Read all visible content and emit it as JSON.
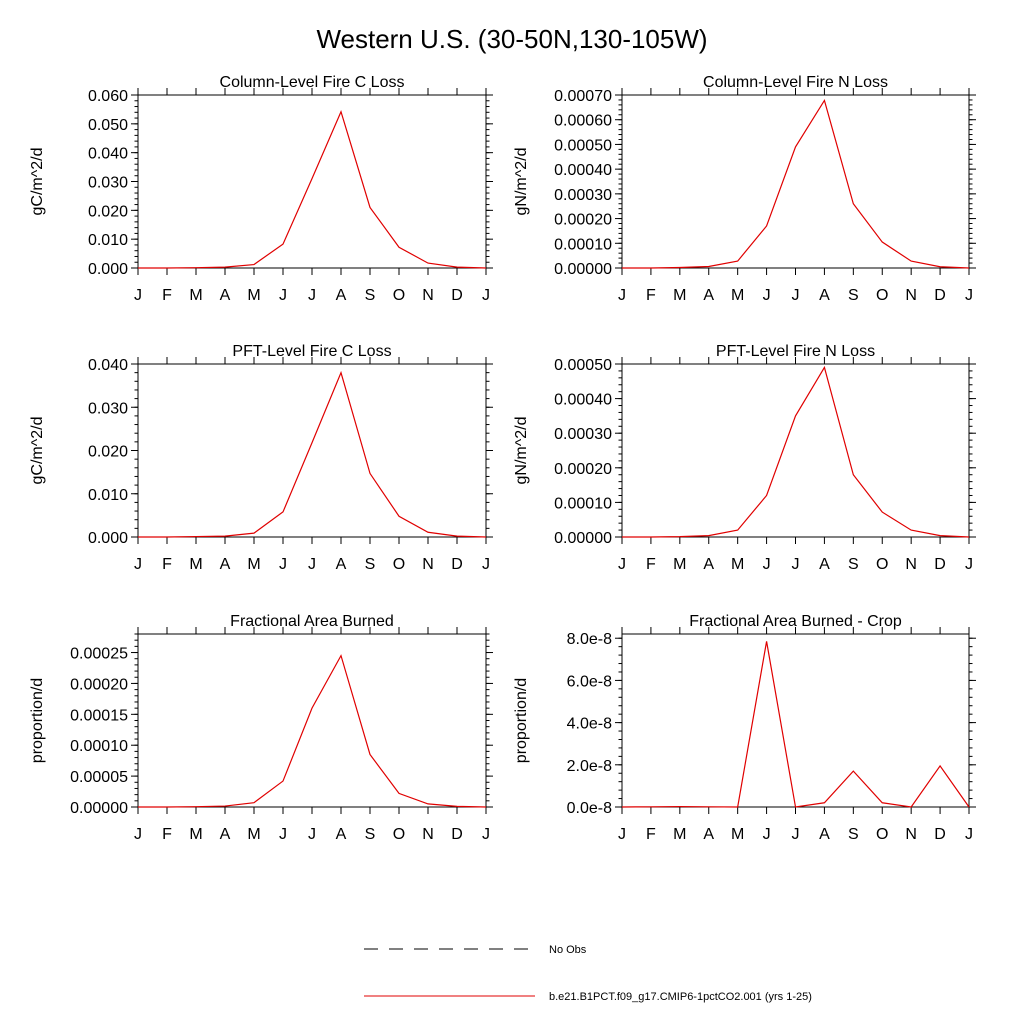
{
  "figure": {
    "title": "Western U.S. (30-50N,130-105W)"
  },
  "chart_data": [
    {
      "type": "line",
      "title": "Column-Level Fire C Loss",
      "xlabel": "",
      "ylabel": "gC/m^2/d",
      "x": [
        "J",
        "F",
        "M",
        "A",
        "M",
        "J",
        "J",
        "A",
        "S",
        "O",
        "N",
        "D",
        "J"
      ],
      "ylim": [
        0,
        0.06
      ],
      "yticks": [
        "0.000",
        "0.010",
        "0.020",
        "0.030",
        "0.040",
        "0.050",
        "0.060"
      ],
      "series": [
        {
          "name": "b.e21.B1PCT.f09_g17.CMIP6-1pctCO2.001 (yrs 1-25)",
          "color": "#e00000",
          "values": [
            0,
            0,
            0.0001,
            0.0003,
            0.0012,
            0.0083,
            0.031,
            0.0542,
            0.021,
            0.0072,
            0.0017,
            0.0003,
            0
          ]
        }
      ]
    },
    {
      "type": "line",
      "title": "Column-Level Fire N Loss",
      "xlabel": "",
      "ylabel": "gN/m^2/d",
      "x": [
        "J",
        "F",
        "M",
        "A",
        "M",
        "J",
        "J",
        "A",
        "S",
        "O",
        "N",
        "D",
        "J"
      ],
      "ylim": [
        0,
        0.0007
      ],
      "yticks": [
        "0.00000",
        "0.00010",
        "0.00020",
        "0.00030",
        "0.00040",
        "0.00050",
        "0.00060",
        "0.00070"
      ],
      "series": [
        {
          "name": "b.e21.B1PCT.f09_g17.CMIP6-1pctCO2.001 (yrs 1-25)",
          "color": "#e00000",
          "values": [
            0,
            0,
            2e-06,
            6e-06,
            2.8e-05,
            0.00017,
            0.00049,
            0.000678,
            0.00026,
            0.000105,
            2.8e-05,
            5e-06,
            0
          ]
        }
      ]
    },
    {
      "type": "line",
      "title": "PFT-Level Fire C Loss",
      "xlabel": "",
      "ylabel": "gC/m^2/d",
      "x": [
        "J",
        "F",
        "M",
        "A",
        "M",
        "J",
        "J",
        "A",
        "S",
        "O",
        "N",
        "D",
        "J"
      ],
      "ylim": [
        0,
        0.04
      ],
      "yticks": [
        "0.000",
        "0.010",
        "0.020",
        "0.030",
        "0.040"
      ],
      "series": [
        {
          "name": "b.e21.B1PCT.f09_g17.CMIP6-1pctCO2.001 (yrs 1-25)",
          "color": "#e00000",
          "values": [
            0,
            0,
            0.0001,
            0.0002,
            0.0009,
            0.0058,
            0.0218,
            0.038,
            0.0147,
            0.0048,
            0.0011,
            0.0002,
            0
          ]
        }
      ]
    },
    {
      "type": "line",
      "title": "PFT-Level Fire N Loss",
      "xlabel": "",
      "ylabel": "gN/m^2/d",
      "x": [
        "J",
        "F",
        "M",
        "A",
        "M",
        "J",
        "J",
        "A",
        "S",
        "O",
        "N",
        "D",
        "J"
      ],
      "ylim": [
        0,
        0.0005
      ],
      "yticks": [
        "0.00000",
        "0.00010",
        "0.00020",
        "0.00030",
        "0.00040",
        "0.00050"
      ],
      "series": [
        {
          "name": "b.e21.B1PCT.f09_g17.CMIP6-1pctCO2.001 (yrs 1-25)",
          "color": "#e00000",
          "values": [
            0,
            0,
            1e-06,
            4e-06,
            2e-05,
            0.00012,
            0.00035,
            0.00049,
            0.00018,
            7.2e-05,
            2e-05,
            4e-06,
            0
          ]
        }
      ]
    },
    {
      "type": "line",
      "title": "Fractional Area Burned",
      "xlabel": "",
      "ylabel": "proportion/d",
      "x": [
        "J",
        "F",
        "M",
        "A",
        "M",
        "J",
        "J",
        "A",
        "S",
        "O",
        "N",
        "D",
        "J"
      ],
      "ylim": [
        0,
        0.00028
      ],
      "yticks": [
        "0.00000",
        "0.00005",
        "0.00010",
        "0.00015",
        "0.00020",
        "0.00025"
      ],
      "series": [
        {
          "name": "b.e21.B1PCT.f09_g17.CMIP6-1pctCO2.001 (yrs 1-25)",
          "color": "#e00000",
          "values": [
            0,
            0,
            5e-07,
            1.5e-06,
            7e-06,
            4.2e-05,
            0.00016,
            0.000245,
            8.5e-05,
            2.2e-05,
            5e-06,
            1e-06,
            0
          ]
        }
      ]
    },
    {
      "type": "line",
      "title": "Fractional Area Burned - Crop",
      "xlabel": "",
      "ylabel": "proportion/d",
      "x": [
        "J",
        "F",
        "M",
        "A",
        "M",
        "J",
        "J",
        "A",
        "S",
        "O",
        "N",
        "D",
        "J"
      ],
      "ylim": [
        0,
        8.2e-08
      ],
      "yticks": [
        "0.0e-8",
        "2.0e-8",
        "4.0e-8",
        "6.0e-8",
        "8.0e-8"
      ],
      "series": [
        {
          "name": "b.e21.B1PCT.f09_g17.CMIP6-1pctCO2.001 (yrs 1-25)",
          "color": "#e00000",
          "values": [
            0,
            1e-10,
            2e-10,
            1e-10,
            0,
            7.85e-08,
            0,
            2e-09,
            1.7e-08,
            2e-09,
            0,
            1.95e-08,
            0
          ]
        }
      ]
    }
  ],
  "legend": {
    "items": [
      {
        "label": "No Obs",
        "style": "dashed",
        "color": "#000000"
      },
      {
        "label": "b.e21.B1PCT.f09_g17.CMIP6-1pctCO2.001 (yrs 1-25)",
        "style": "solid",
        "color": "#e00000"
      }
    ]
  }
}
